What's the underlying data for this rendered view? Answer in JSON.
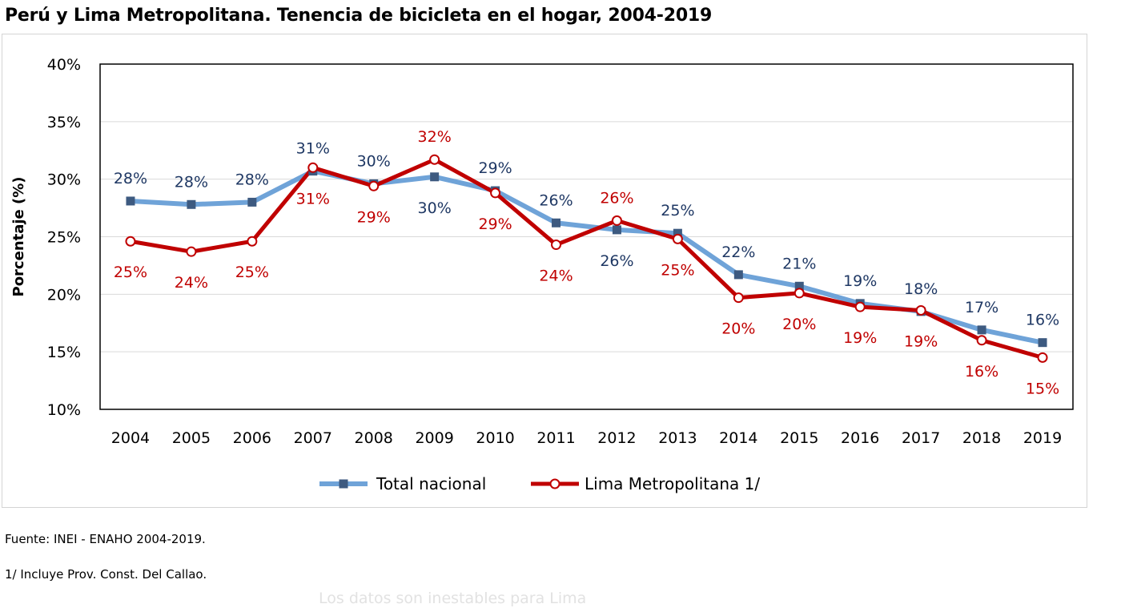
{
  "title": "Perú y Lima Metropolitana. Tenencia de bicicleta en el hogar, 2004-2019",
  "notes": {
    "source": "Fuente: INEI - ENAHO 2004-2019.",
    "footnote": "1/ Incluye Prov. Const. Del Callao.",
    "faded": "Los datos son inestables para Lima"
  },
  "colors": {
    "total_nacional_line": "#6fa3d8",
    "total_nacional_marker": "#3d5a80",
    "total_nacional_label": "#1f3864",
    "lima_line": "#c00000",
    "lima_label": "#c00000",
    "grid": "#d9d9d9",
    "plot_border": "#000000"
  },
  "chart_data": {
    "type": "line",
    "title": "Perú y Lima Metropolitana. Tenencia de bicicleta en el hogar, 2004-2019",
    "xlabel": "",
    "ylabel": "Porcentaje (%)",
    "ylim": [
      10,
      40
    ],
    "yticks": [
      "10%",
      "15%",
      "20%",
      "25%",
      "30%",
      "35%",
      "40%"
    ],
    "ytick_values": [
      10,
      15,
      20,
      25,
      30,
      35,
      40
    ],
    "grid": true,
    "legend_position": "bottom",
    "x": [
      "2004",
      "2005",
      "2006",
      "2007",
      "2008",
      "2009",
      "2010",
      "2011",
      "2012",
      "2013",
      "2014",
      "2015",
      "2016",
      "2017",
      "2018",
      "2019"
    ],
    "series": [
      {
        "name": "Total nacional",
        "marker": "square",
        "values": [
          28.1,
          27.8,
          28.0,
          30.7,
          29.6,
          30.2,
          29.0,
          26.2,
          25.6,
          25.3,
          21.7,
          20.7,
          19.2,
          18.5,
          16.9,
          15.8
        ],
        "labels": [
          "28%",
          "28%",
          "28%",
          "31%",
          "30%",
          "30%",
          "29%",
          "26%",
          "26%",
          "25%",
          "22%",
          "21%",
          "19%",
          "18%",
          "17%",
          "16%"
        ],
        "label_positions": [
          "above",
          "above",
          "above",
          "above",
          "above",
          "below",
          "above",
          "above",
          "below",
          "above",
          "above",
          "above",
          "above",
          "above",
          "above",
          "above"
        ]
      },
      {
        "name": "Lima Metropolitana 1/",
        "marker": "circle",
        "values": [
          24.6,
          23.7,
          24.6,
          31.0,
          29.4,
          31.7,
          28.8,
          24.3,
          26.4,
          24.8,
          19.7,
          20.1,
          18.9,
          18.6,
          16.0,
          14.5
        ],
        "labels": [
          "25%",
          "24%",
          "25%",
          "31%",
          "29%",
          "32%",
          "29%",
          "24%",
          "26%",
          "25%",
          "20%",
          "20%",
          "19%",
          "19%",
          "16%",
          "15%"
        ],
        "label_positions": [
          "below",
          "below",
          "below",
          "below",
          "below",
          "above",
          "below",
          "below",
          "above",
          "below",
          "below",
          "below",
          "below",
          "below",
          "below",
          "below"
        ]
      }
    ]
  }
}
